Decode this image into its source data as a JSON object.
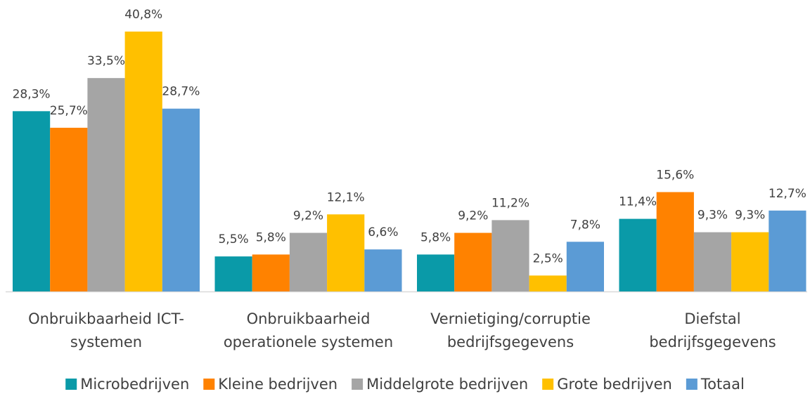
{
  "chart_data": {
    "type": "bar",
    "categories": [
      [
        "Onbruikbaarheid ICT-",
        "systemen"
      ],
      [
        "Onbruikbaarheid",
        "operationele systemen"
      ],
      [
        "Vernietiging/corruptie",
        "bedrijfsgegevens"
      ],
      [
        "Diefstal",
        "bedrijfsgegevens"
      ]
    ],
    "series": [
      {
        "name": "Microbedrijven",
        "color": "#0a9aa8",
        "values": [
          28.3,
          5.5,
          5.8,
          11.4
        ],
        "value_labels": [
          "28,3%",
          "5,5%",
          "5,8%",
          "11,4%"
        ]
      },
      {
        "name": "Kleine bedrijven",
        "color": "#ff8200",
        "values": [
          25.7,
          5.8,
          9.2,
          15.6
        ],
        "value_labels": [
          "25,7%",
          "5,8%",
          "9,2%",
          "15,6%"
        ]
      },
      {
        "name": "Middelgrote bedrijven",
        "color": "#a5a5a5",
        "values": [
          33.5,
          9.2,
          11.2,
          9.3
        ],
        "value_labels": [
          "33,5%",
          "9,2%",
          "11,2%",
          "9,3%"
        ]
      },
      {
        "name": "Grote bedrijven",
        "color": "#ffc000",
        "values": [
          40.8,
          12.1,
          2.5,
          9.3
        ],
        "value_labels": [
          "40,8%",
          "12,1%",
          "2,5%",
          "9,3%"
        ]
      },
      {
        "name": "Totaal",
        "color": "#5b9bd5",
        "values": [
          28.7,
          6.6,
          7.8,
          12.7
        ],
        "value_labels": [
          "28,7%",
          "6,6%",
          "7,8%",
          "12,7%"
        ]
      }
    ],
    "legend": "bottom"
  }
}
